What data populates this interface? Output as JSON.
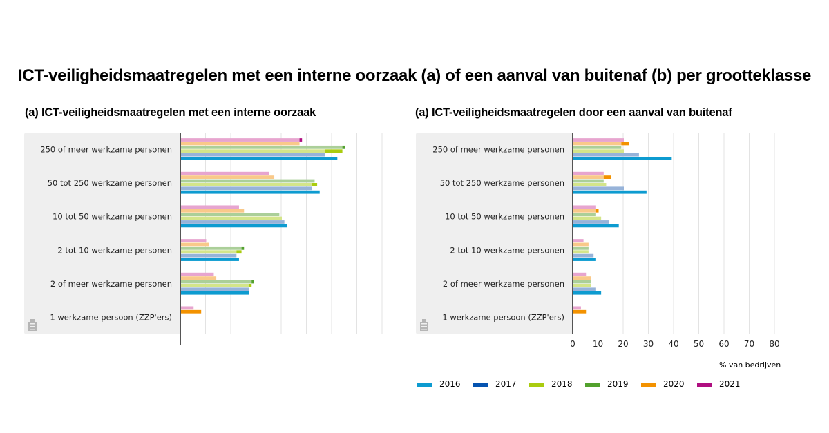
{
  "title": "ICT-veiligheidsmaatregelen met een interne oorzaak (a) of een aanval van buitenaf (b) per grootteklasse",
  "colors": {
    "2016": "#0d9bd0",
    "2017": "#0553b0",
    "2018": "#aacc0f",
    "2019": "#52a12d",
    "2020": "#f39200",
    "2021": "#af0e80",
    "panel_bg": "#efefef",
    "grid": "#e3e3e3",
    "axis": "#555555",
    "prev_2016": "#a3d5ef",
    "prev_2017": "#97b3d9",
    "prev_2018": "#d4e58a",
    "prev_2019": "#abcf99",
    "prev_2020": "#f9c98a",
    "prev_2021": "#e7a5cf"
  },
  "legend": [
    {
      "year": "2016",
      "label": "2016"
    },
    {
      "year": "2017",
      "label": "2017"
    },
    {
      "year": "2018",
      "label": "2018"
    },
    {
      "year": "2019",
      "label": "2019"
    },
    {
      "year": "2020",
      "label": "2020"
    },
    {
      "year": "2021",
      "label": "2021"
    }
  ],
  "chart_data": [
    {
      "type": "bar",
      "orientation": "horizontal",
      "title": "(a) ICT-veiligheidsmaatregelen met een interne oorzaak",
      "categories": [
        "250 of meer werkzame personen",
        "50 tot 250 werkzame personen",
        "10 tot 50 werkzame personen",
        "2 tot 10 werkzame personen",
        "2 of meer werkzame personen",
        "1 werkzame persoon (ZZP'ers)"
      ],
      "series": [
        {
          "name": "2021",
          "values": [
            48,
            35,
            23,
            10,
            13,
            5
          ]
        },
        {
          "name": "2020",
          "values": [
            47,
            37,
            25,
            11,
            14,
            8
          ]
        },
        {
          "name": "2019",
          "values": [
            65,
            53,
            39,
            25,
            29,
            null
          ]
        },
        {
          "name": "2018",
          "values": [
            64,
            54,
            40,
            24,
            28,
            null
          ]
        },
        {
          "name": "2017",
          "values": [
            57,
            52,
            41,
            22,
            27,
            null
          ]
        },
        {
          "name": "2016",
          "values": [
            62,
            55,
            42,
            23,
            27,
            null
          ]
        }
      ],
      "xlim": [
        0,
        80
      ],
      "xticks": [
        0,
        10,
        20,
        30,
        40,
        50,
        60,
        70,
        80
      ],
      "show_tick_labels": false,
      "xlabel": "",
      "grid": true
    },
    {
      "type": "bar",
      "orientation": "horizontal",
      "title": "(a) ICT-veiligheidsmaatregelen door een aanval van buitenaf",
      "categories": [
        "250 of meer werkzame personen",
        "50 tot 250 werkzame personen",
        "10 tot 50 werkzame personen",
        "2 tot 10 werkzame personen",
        "2 of meer werkzame personen",
        "1 werkzame persoon (ZZP'ers)"
      ],
      "series": [
        {
          "name": "2021",
          "values": [
            20,
            12,
            9,
            4,
            5,
            3
          ]
        },
        {
          "name": "2020",
          "values": [
            22,
            15,
            10,
            6,
            7,
            5
          ]
        },
        {
          "name": "2019",
          "values": [
            19,
            12,
            9,
            6,
            7,
            null
          ]
        },
        {
          "name": "2018",
          "values": [
            20,
            13,
            11,
            6,
            7,
            null
          ]
        },
        {
          "name": "2017",
          "values": [
            26,
            20,
            14,
            8,
            9,
            null
          ]
        },
        {
          "name": "2016",
          "values": [
            39,
            29,
            18,
            9,
            11,
            null
          ]
        }
      ],
      "xlim": [
        0,
        80
      ],
      "xticks": [
        0,
        10,
        20,
        30,
        40,
        50,
        60,
        70,
        80
      ],
      "xtick_labels": [
        "0",
        "10",
        "20",
        "30",
        "40",
        "50",
        "60",
        "70",
        "80"
      ],
      "show_tick_labels": true,
      "xlabel": "% van bedrijven",
      "grid": true
    }
  ]
}
